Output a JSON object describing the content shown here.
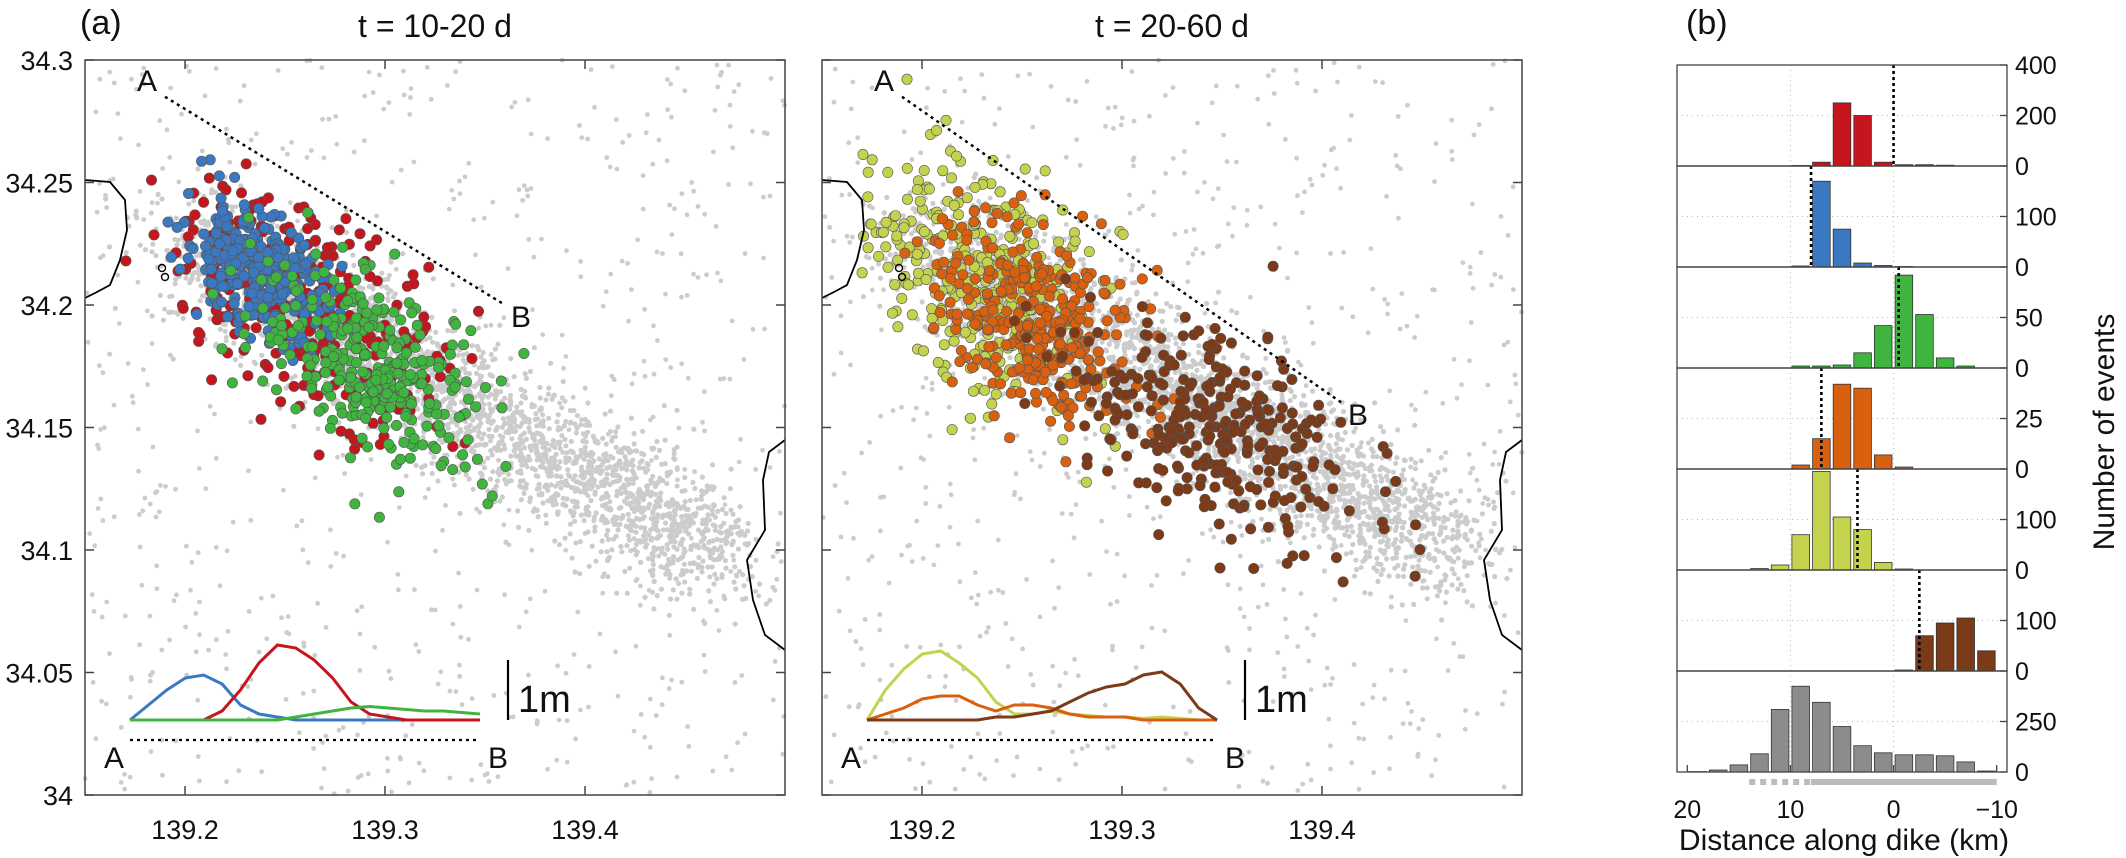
{
  "panel_labels": {
    "a": "(a)",
    "b": "(b)"
  },
  "map_axes": {
    "x_ticks": [
      139.2,
      139.3,
      139.4
    ],
    "x_tick_labels": [
      "139.2",
      "139.3",
      "139.4"
    ],
    "y_ticks": [
      34,
      34.05,
      34.1,
      34.15,
      34.2,
      34.25,
      34.3
    ],
    "y_tick_labels": [
      "34",
      "34.05",
      "34.1",
      "34.15",
      "34.2",
      "34.25",
      "34.3"
    ],
    "xlim": [
      139.15,
      139.5
    ],
    "ylim": [
      34.0,
      34.3
    ]
  },
  "profile_ends": {
    "a": "A",
    "b": "B"
  },
  "scale_bar_label": "1m",
  "hist_axes": {
    "xlabel": "Distance along dike (km)",
    "ylabel": "Number of events",
    "x_ticks": [
      20,
      10,
      0,
      -10
    ],
    "x_tick_labels": [
      "20",
      "10",
      "0",
      "−10"
    ],
    "xlim": [
      21,
      -11
    ]
  },
  "colors": {
    "background_events": "#cccccc",
    "red": "#c4161c",
    "blue": "#3a78c2",
    "green": "#3fb53f",
    "orange": "#d9600f",
    "yellow_green": "#c4d24e",
    "brown": "#7b3a18",
    "gray": "#8c8c8c"
  },
  "chart_data": [
    {
      "type": "scatter",
      "title": "t = 10-20 d",
      "xlabel": "",
      "ylabel": "",
      "xlim": [
        139.15,
        139.5
      ],
      "ylim": [
        34.0,
        34.3
      ],
      "grid": false,
      "profile_line": {
        "A": [
          139.19,
          34.285
        ],
        "B": [
          139.36,
          34.2
        ]
      },
      "series": [
        {
          "color": "red",
          "cluster_center": [
            139.26,
            34.2
          ],
          "spread": [
            0.035,
            0.02
          ]
        },
        {
          "color": "blue",
          "cluster_center": [
            139.235,
            34.215
          ],
          "spread": [
            0.018,
            0.012
          ]
        },
        {
          "color": "green",
          "cluster_center": [
            139.295,
            34.175
          ],
          "spread": [
            0.03,
            0.018
          ]
        }
      ],
      "inset_profiles": [
        {
          "color": "blue",
          "y": [
            0,
            0.5,
            1.0,
            1.4,
            1.5,
            1.2,
            0.5,
            0.2,
            0.1,
            0,
            0,
            0,
            0,
            0,
            0,
            0,
            0,
            0,
            0,
            0
          ]
        },
        {
          "color": "red",
          "y": [
            0,
            0,
            0,
            0,
            0,
            0.3,
            1.0,
            1.9,
            2.5,
            2.4,
            2.0,
            1.4,
            0.6,
            0.2,
            0.1,
            0,
            0,
            0,
            0,
            0
          ]
        },
        {
          "color": "green",
          "y": [
            0,
            0,
            0,
            0,
            0,
            0,
            0,
            0,
            0,
            0.1,
            0.2,
            0.3,
            0.4,
            0.45,
            0.4,
            0.35,
            0.3,
            0.3,
            0.25,
            0.2
          ]
        }
      ]
    },
    {
      "type": "scatter",
      "title": "t = 20-60 d",
      "xlabel": "",
      "ylabel": "",
      "xlim": [
        139.15,
        139.5
      ],
      "ylim": [
        34.0,
        34.3
      ],
      "grid": false,
      "profile_line": {
        "A": [
          139.19,
          34.285
        ],
        "B": [
          139.41,
          34.16
        ]
      },
      "series": [
        {
          "color": "yellow_green",
          "cluster_center": [
            139.23,
            34.21
          ],
          "spread": [
            0.028,
            0.022
          ]
        },
        {
          "color": "orange",
          "cluster_center": [
            139.255,
            34.195
          ],
          "spread": [
            0.025,
            0.02
          ]
        },
        {
          "color": "brown",
          "cluster_center": [
            139.345,
            34.15
          ],
          "spread": [
            0.035,
            0.02
          ]
        }
      ],
      "inset_profiles": [
        {
          "color": "yellow_green",
          "y": [
            0,
            1.0,
            1.7,
            2.2,
            2.3,
            1.9,
            1.4,
            0.6,
            0.2,
            0.2,
            0.3,
            0.2,
            0.15,
            0.1,
            0.1,
            0.05,
            0.1,
            0.05,
            0,
            0
          ]
        },
        {
          "color": "orange",
          "y": [
            0,
            0.2,
            0.4,
            0.7,
            0.8,
            0.8,
            0.5,
            0.3,
            0.5,
            0.5,
            0.4,
            0.2,
            0.1,
            0.1,
            0.1,
            0,
            0,
            0,
            0,
            0
          ]
        },
        {
          "color": "brown",
          "y": [
            0,
            0,
            0,
            0,
            0,
            0,
            0,
            0.1,
            0.1,
            0.2,
            0.3,
            0.6,
            0.9,
            1.1,
            1.2,
            1.5,
            1.6,
            1.2,
            0.4,
            0
          ]
        }
      ]
    },
    {
      "type": "bar",
      "xlabel": "Distance along dike (km)",
      "ylabel": "Number of events",
      "bin_centers": [
        19,
        17,
        15,
        13,
        11,
        9,
        7,
        5,
        3,
        1,
        -1,
        -3,
        -5,
        -7,
        -9
      ],
      "xlim": [
        21,
        -11
      ],
      "series": [
        {
          "color": "red",
          "ylim": [
            0,
            400
          ],
          "y_ticks": [
            0,
            200,
            400
          ],
          "values": [
            0,
            0,
            0,
            0,
            0,
            2,
            15,
            250,
            200,
            15,
            5,
            5,
            3,
            0,
            0
          ],
          "median": 0
        },
        {
          "color": "blue",
          "ylim": [
            0,
            200
          ],
          "y_ticks": [
            0,
            100
          ],
          "values": [
            0,
            0,
            0,
            0,
            0,
            2,
            170,
            75,
            8,
            3,
            1,
            0,
            0,
            0,
            0
          ],
          "median": 8
        },
        {
          "color": "green",
          "ylim": [
            0,
            100
          ],
          "y_ticks": [
            0,
            50
          ],
          "values": [
            0,
            0,
            0,
            0,
            0,
            2,
            2,
            3,
            15,
            42,
            92,
            53,
            10,
            2,
            0
          ],
          "median": -0.5
        },
        {
          "color": "orange",
          "ylim": [
            0,
            50
          ],
          "y_ticks": [
            0,
            25
          ],
          "values": [
            0,
            0,
            0,
            0,
            0,
            2,
            15,
            42,
            40,
            7,
            1,
            0,
            0,
            0,
            0
          ],
          "median": 7
        },
        {
          "color": "yellow_green",
          "ylim": [
            0,
            200
          ],
          "y_ticks": [
            0,
            100
          ],
          "values": [
            0,
            0,
            0,
            3,
            10,
            70,
            195,
            105,
            80,
            15,
            2,
            0,
            0,
            0,
            0
          ],
          "median": 3.5
        },
        {
          "color": "brown",
          "ylim": [
            0,
            200
          ],
          "y_ticks": [
            0,
            100
          ],
          "values": [
            0,
            0,
            0,
            0,
            0,
            0,
            0,
            0,
            0,
            0,
            2,
            70,
            95,
            105,
            40
          ],
          "median": -2.5
        },
        {
          "color": "gray",
          "ylim": [
            0,
            500
          ],
          "y_ticks": [
            0,
            250
          ],
          "values": [
            2,
            10,
            35,
            90,
            310,
            425,
            345,
            225,
            130,
            95,
            85,
            85,
            80,
            50,
            5
          ],
          "median": null
        }
      ]
    }
  ]
}
